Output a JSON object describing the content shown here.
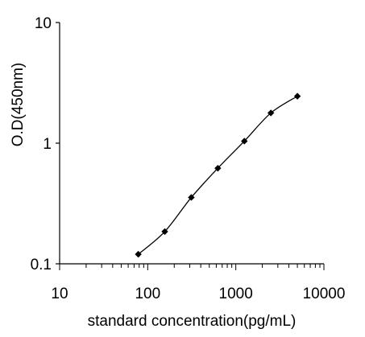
{
  "chart_data": {
    "type": "line",
    "title": "",
    "xlabel": "standard concentration(pg/mL)",
    "ylabel": "O.D(450nm)",
    "x_scale": "log",
    "y_scale": "log",
    "xlim": [
      10,
      10000
    ],
    "ylim": [
      0.1,
      10
    ],
    "x_ticks": [
      10,
      100,
      1000,
      10000
    ],
    "x_tick_labels": [
      "10",
      "100",
      "1000",
      "10000"
    ],
    "y_ticks": [
      0.1,
      1,
      10
    ],
    "y_tick_labels": [
      "0.1",
      "1",
      "10"
    ],
    "grid": false,
    "legend": "none",
    "series": [
      {
        "x": [
          78.125,
          156.25,
          312.5,
          625,
          1250,
          2500,
          5000
        ],
        "y": [
          0.12,
          0.185,
          0.355,
          0.62,
          1.04,
          1.78,
          2.45
        ],
        "marker": "diamond",
        "color": "#000000",
        "smooth": true
      }
    ]
  }
}
